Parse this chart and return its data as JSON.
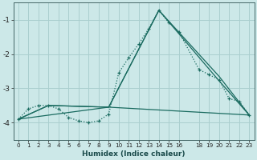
{
  "xlabel": "Humidex (Indice chaleur)",
  "background_color": "#cce8e8",
  "grid_color": "#aacfcf",
  "line_color": "#1a6b60",
  "xlim": [
    -0.5,
    23.5
  ],
  "ylim": [
    -4.5,
    -0.5
  ],
  "yticks": [
    -4,
    -3,
    -2,
    -1
  ],
  "xticks": [
    0,
    1,
    2,
    3,
    4,
    5,
    6,
    7,
    8,
    9,
    10,
    11,
    12,
    13,
    14,
    15,
    16,
    18,
    19,
    20,
    21,
    22,
    23
  ],
  "curve1_x": [
    0,
    1,
    2,
    3,
    4,
    5,
    6,
    7,
    8,
    9,
    10,
    11,
    12,
    13,
    14,
    15,
    16,
    18,
    19,
    20,
    21,
    22,
    23
  ],
  "curve1_y": [
    -3.9,
    -3.6,
    -3.5,
    -3.5,
    -3.6,
    -3.85,
    -3.95,
    -4.0,
    -3.95,
    -3.75,
    -2.55,
    -2.1,
    -1.7,
    -1.25,
    -0.72,
    -1.08,
    -1.35,
    -2.45,
    -2.6,
    -2.75,
    -3.3,
    -3.38,
    -3.78
  ],
  "curve2_x": [
    0,
    3,
    9,
    14,
    20,
    23
  ],
  "curve2_y": [
    -3.9,
    -3.5,
    -3.55,
    -0.72,
    -2.65,
    -3.78
  ],
  "curve3_x": [
    0,
    3,
    9,
    14,
    20,
    23
  ],
  "curve3_y": [
    -3.9,
    -3.5,
    -3.55,
    -0.72,
    -2.78,
    -3.78
  ],
  "curve4_x": [
    0,
    9,
    23
  ],
  "curve4_y": [
    -3.9,
    -3.55,
    -3.78
  ]
}
